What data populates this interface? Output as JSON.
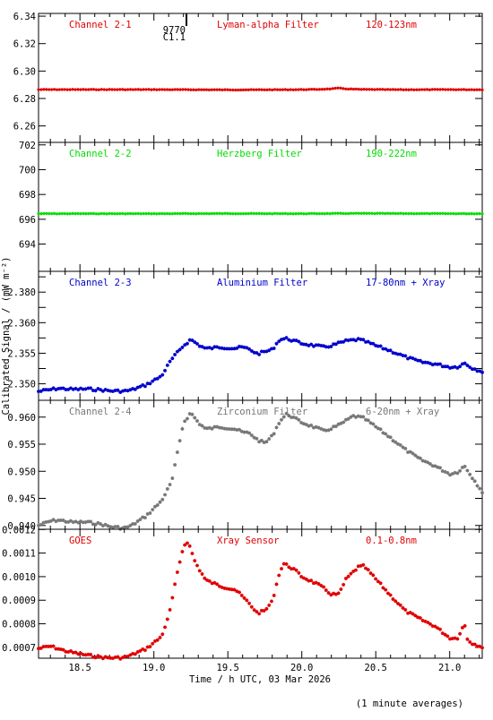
{
  "footer_note": "(1 minute averages)",
  "chart_data": {
    "type": "scatter",
    "xlabel": "Time / h UTC, 03 Mar 2026",
    "ylabel": "Calibrated Signal / (mW m⁻²)",
    "xlim": [
      18.22,
      21.22
    ],
    "x_ticks": [
      18.5,
      19.0,
      19.5,
      20.0,
      20.5,
      21.0
    ],
    "x_tick_labels": [
      "18.5",
      "19.0",
      "19.5",
      "20.0",
      "20.5",
      "21.0"
    ],
    "marker": "asterisk",
    "event_marker": {
      "x": 19.22,
      "labels": [
        "9770",
        "C1.1"
      ]
    },
    "panels": [
      {
        "channel": "Channel 2-1",
        "filter": "Lyman-alpha Filter",
        "band": "120-123nm",
        "color": "#e00000",
        "ylim": [
          6.248,
          6.342
        ],
        "y_ticks": [
          6.26,
          6.28,
          6.3,
          6.32,
          6.34
        ],
        "y_tick_labels": [
          "6.26",
          "6.28",
          "6.30",
          "6.32",
          "6.34"
        ],
        "points": [
          [
            18.22,
            6.2865
          ],
          [
            19.0,
            6.2865
          ],
          [
            19.5,
            6.2863
          ],
          [
            19.9,
            6.2864
          ],
          [
            20.1,
            6.2866
          ],
          [
            20.2,
            6.287
          ],
          [
            20.25,
            6.2876
          ],
          [
            20.3,
            6.287
          ],
          [
            20.4,
            6.2866
          ],
          [
            20.7,
            6.2864
          ],
          [
            21.0,
            6.2865
          ],
          [
            21.22,
            6.2864
          ]
        ]
      },
      {
        "channel": "Channel 2-2",
        "filter": "Herzberg Filter",
        "band": "190-222nm",
        "color": "#00dd00",
        "ylim": [
          691.8,
          702.2
        ],
        "y_ticks": [
          694,
          696,
          698,
          700,
          702
        ],
        "y_tick_labels": [
          "694",
          "696",
          "698",
          "700",
          "702"
        ],
        "points": [
          [
            18.22,
            696.45
          ],
          [
            19.0,
            696.45
          ],
          [
            19.5,
            696.46
          ],
          [
            20.0,
            696.45
          ],
          [
            20.35,
            696.47
          ],
          [
            20.7,
            696.46
          ],
          [
            21.22,
            696.45
          ]
        ]
      },
      {
        "channel": "Channel 2-3",
        "filter": "Aluminium Filter",
        "band": "17-80nm + Xray",
        "color": "#0000cc",
        "ylim": [
          2.3446,
          2.3868
        ],
        "y_ticks": [
          2.35,
          2.355,
          2.36,
          2.365,
          2.37,
          2.375,
          2.38,
          2.385
        ],
        "y_tick_labels": [
          "2.350",
          "",
          "2.355",
          "",
          "2.360",
          "",
          "2.380",
          ""
        ],
        "points": [
          [
            18.22,
            2.3475
          ],
          [
            18.3,
            2.3481
          ],
          [
            18.35,
            2.3485
          ],
          [
            18.45,
            2.3482
          ],
          [
            18.55,
            2.3483
          ],
          [
            18.65,
            2.348
          ],
          [
            18.7,
            2.3477
          ],
          [
            18.8,
            2.3476
          ],
          [
            18.85,
            2.348
          ],
          [
            18.95,
            2.3497
          ],
          [
            19.05,
            2.3525
          ],
          [
            19.12,
            2.358
          ],
          [
            19.2,
            2.3625
          ],
          [
            19.25,
            2.3645
          ],
          [
            19.3,
            2.3628
          ],
          [
            19.35,
            2.3615
          ],
          [
            19.45,
            2.362
          ],
          [
            19.55,
            2.3616
          ],
          [
            19.6,
            2.362
          ],
          [
            19.65,
            2.3612
          ],
          [
            19.7,
            2.3598
          ],
          [
            19.75,
            2.3605
          ],
          [
            19.8,
            2.3612
          ],
          [
            19.85,
            2.3645
          ],
          [
            19.9,
            2.3648
          ],
          [
            19.95,
            2.364
          ],
          [
            20.0,
            2.3632
          ],
          [
            20.1,
            2.3624
          ],
          [
            20.15,
            2.362
          ],
          [
            20.2,
            2.3625
          ],
          [
            20.3,
            2.364
          ],
          [
            20.38,
            2.3645
          ],
          [
            20.42,
            2.364
          ],
          [
            20.5,
            2.3625
          ],
          [
            20.6,
            2.3608
          ],
          [
            20.7,
            2.3588
          ],
          [
            20.8,
            2.3572
          ],
          [
            20.9,
            2.3565
          ],
          [
            21.0,
            2.3555
          ],
          [
            21.05,
            2.3555
          ],
          [
            21.1,
            2.3568
          ],
          [
            21.15,
            2.3552
          ],
          [
            21.22,
            2.354
          ]
        ]
      },
      {
        "channel": "Channel 2-4",
        "filter": "Zirconium Filter",
        "band": "6-20nm + Xray",
        "color": "#777777",
        "ylim": [
          0.9393,
          0.9631
        ],
        "y_ticks": [
          0.94,
          0.945,
          0.95,
          0.955,
          0.96
        ],
        "y_tick_labels": [
          "0.940",
          "0.945",
          "0.950",
          "0.955",
          "0.960"
        ],
        "points": [
          [
            18.22,
            0.94
          ],
          [
            18.3,
            0.9408
          ],
          [
            18.35,
            0.941
          ],
          [
            18.45,
            0.9406
          ],
          [
            18.55,
            0.9406
          ],
          [
            18.65,
            0.9402
          ],
          [
            18.7,
            0.9398
          ],
          [
            18.8,
            0.9395
          ],
          [
            18.85,
            0.94
          ],
          [
            18.95,
            0.9418
          ],
          [
            19.05,
            0.9445
          ],
          [
            19.12,
            0.948
          ],
          [
            19.2,
            0.959
          ],
          [
            19.25,
            0.9608
          ],
          [
            19.3,
            0.959
          ],
          [
            19.35,
            0.9578
          ],
          [
            19.45,
            0.9582
          ],
          [
            19.55,
            0.9578
          ],
          [
            19.6,
            0.9572
          ],
          [
            19.65,
            0.957
          ],
          [
            19.7,
            0.9558
          ],
          [
            19.75,
            0.9552
          ],
          [
            19.8,
            0.9565
          ],
          [
            19.85,
            0.9592
          ],
          [
            19.9,
            0.9606
          ],
          [
            19.95,
            0.9598
          ],
          [
            20.0,
            0.959
          ],
          [
            20.1,
            0.958
          ],
          [
            20.15,
            0.9574
          ],
          [
            20.25,
            0.9585
          ],
          [
            20.35,
            0.9602
          ],
          [
            20.42,
            0.9598
          ],
          [
            20.5,
            0.9582
          ],
          [
            20.6,
            0.9562
          ],
          [
            20.7,
            0.954
          ],
          [
            20.8,
            0.9522
          ],
          [
            20.9,
            0.951
          ],
          [
            21.0,
            0.9495
          ],
          [
            21.05,
            0.9498
          ],
          [
            21.1,
            0.951
          ],
          [
            21.15,
            0.949
          ],
          [
            21.22,
            0.9462
          ]
        ]
      },
      {
        "channel": "GOES",
        "filter": "Xray Sensor",
        "band": "0.1-0.8nm",
        "color": "#e00000",
        "ylim": [
          0.000654,
          0.001201
        ],
        "y_ticks": [
          0.0007,
          0.0008,
          0.0009,
          0.001,
          0.0011,
          0.0012
        ],
        "y_tick_labels": [
          "0.0007",
          "0.0008",
          "0.0009",
          "0.0010",
          "0.0011",
          "0.0012"
        ],
        "points": [
          [
            18.22,
            0.000695
          ],
          [
            18.3,
            0.000705
          ],
          [
            18.4,
            0.000685
          ],
          [
            18.5,
            0.000672
          ],
          [
            18.6,
            0.000662
          ],
          [
            18.7,
            0.000655
          ],
          [
            18.8,
            0.000657
          ],
          [
            18.85,
            0.000668
          ],
          [
            18.95,
            0.000695
          ],
          [
            19.05,
            0.000745
          ],
          [
            19.1,
            0.00083
          ],
          [
            19.15,
            0.00099
          ],
          [
            19.2,
            0.00113
          ],
          [
            19.23,
            0.00115
          ],
          [
            19.28,
            0.00106
          ],
          [
            19.35,
            0.000985
          ],
          [
            19.45,
            0.00096
          ],
          [
            19.55,
            0.000945
          ],
          [
            19.6,
            0.000915
          ],
          [
            19.65,
            0.000882
          ],
          [
            19.7,
            0.000845
          ],
          [
            19.75,
            0.000855
          ],
          [
            19.8,
            0.000895
          ],
          [
            19.85,
            0.00102
          ],
          [
            19.88,
            0.001055
          ],
          [
            19.95,
            0.00103
          ],
          [
            20.0,
            0.001
          ],
          [
            20.1,
            0.00097
          ],
          [
            20.15,
            0.00095
          ],
          [
            20.2,
            0.000925
          ],
          [
            20.25,
            0.000925
          ],
          [
            20.3,
            0.00099
          ],
          [
            20.38,
            0.00104
          ],
          [
            20.42,
            0.001045
          ],
          [
            20.5,
            0.00099
          ],
          [
            20.6,
            0.00092
          ],
          [
            20.7,
            0.000855
          ],
          [
            20.8,
            0.00082
          ],
          [
            20.9,
            0.00079
          ],
          [
            21.0,
            0.00074
          ],
          [
            21.05,
            0.000738
          ],
          [
            21.1,
            0.0008
          ],
          [
            21.12,
            0.000735
          ],
          [
            21.15,
            0.000718
          ],
          [
            21.22,
            0.000702
          ]
        ]
      }
    ]
  }
}
